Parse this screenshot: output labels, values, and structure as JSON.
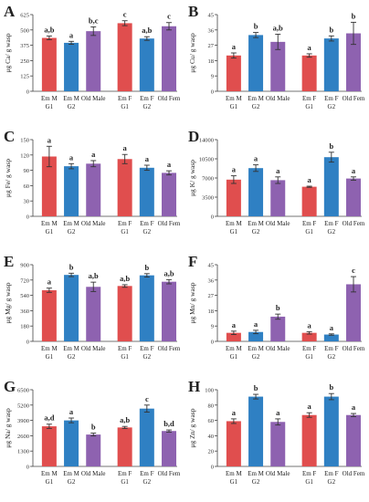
{
  "colors": {
    "red": "#e04e4e",
    "blue": "#2f80c3",
    "purple": "#8e62b0",
    "errorbar": "#333333"
  },
  "chart_data": [
    {
      "type": "bar",
      "panel": "A",
      "ylabel": "μg Ca/ g wasp",
      "ylim": [
        0,
        625
      ],
      "yticks": [
        "0",
        "125",
        "250",
        "375",
        "500",
        "625"
      ],
      "categories": [
        "Em M G1",
        "Em M G2",
        "Old Male",
        "Em F G1",
        "Em F G2",
        "Old Fem"
      ],
      "values": [
        435,
        395,
        490,
        555,
        430,
        530
      ],
      "errors": [
        15,
        12,
        35,
        20,
        15,
        30
      ],
      "labels": [
        "a,b",
        "a",
        "b,c",
        "c",
        "a,b",
        "c"
      ]
    },
    {
      "type": "bar",
      "panel": "B",
      "ylabel": "μg Cu/ g wasp",
      "ylim": [
        0,
        45
      ],
      "yticks": [
        "0",
        "9",
        "18",
        "27",
        "36",
        "45"
      ],
      "categories": [
        "Em M G1",
        "Em M G2",
        "Old Male",
        "Em F G1",
        "Em F G2",
        "Old Fem"
      ],
      "values": [
        21,
        33,
        29,
        21,
        31,
        34
      ],
      "errors": [
        1.5,
        1.5,
        4.5,
        1,
        1.5,
        6.5
      ],
      "labels": [
        "a",
        "b",
        "a,b",
        "a",
        "b",
        "b"
      ]
    },
    {
      "type": "bar",
      "panel": "C",
      "ylabel": "μg Fe/ g wasp",
      "ylim": [
        0,
        150
      ],
      "yticks": [
        "0",
        "30",
        "60",
        "90",
        "120",
        "150"
      ],
      "categories": [
        "Em M G1",
        "Em M G2",
        "Old Male",
        "Em F G1",
        "Em F G2",
        "Old Fem"
      ],
      "values": [
        117,
        98,
        103,
        112,
        95,
        85
      ],
      "errors": [
        20,
        5,
        6,
        9,
        5,
        4
      ],
      "labels": [
        "a",
        "a",
        "a",
        "a",
        "a",
        "a"
      ]
    },
    {
      "type": "bar",
      "panel": "D",
      "ylabel": "μg K/ g wasp",
      "ylim": [
        0,
        14000
      ],
      "yticks": [
        "0",
        "3500",
        "7000",
        "10500",
        "14000"
      ],
      "categories": [
        "Em M G1",
        "Em M G2",
        "Old Male",
        "Em F G1",
        "Em F G2",
        "Old Fem"
      ],
      "values": [
        6700,
        8800,
        6600,
        5400,
        10800,
        6900
      ],
      "errors": [
        700,
        600,
        600,
        100,
        900,
        300
      ],
      "labels": [
        "a",
        "a",
        "a",
        "a",
        "b",
        "a"
      ]
    },
    {
      "type": "bar",
      "panel": "E",
      "ylabel": "μg Mg/ g wasp",
      "ylim": [
        0,
        900
      ],
      "yticks": [
        "0",
        "180",
        "360",
        "540",
        "720",
        "900"
      ],
      "categories": [
        "Em M G1",
        "Em M G2",
        "Old Male",
        "Em F G1",
        "Em F G2",
        "Old Fem"
      ],
      "values": [
        600,
        780,
        640,
        650,
        775,
        700
      ],
      "errors": [
        25,
        20,
        55,
        15,
        20,
        25
      ],
      "labels": [
        "a",
        "b",
        "a,b",
        "a,b",
        "b",
        "a,b"
      ]
    },
    {
      "type": "bar",
      "panel": "F",
      "ylabel": "μg Mn/ g wasp",
      "ylim": [
        0,
        45
      ],
      "yticks": [
        "0",
        "9",
        "18",
        "27",
        "36",
        "45"
      ],
      "categories": [
        "Em M G1",
        "Em M G2",
        "Old Male",
        "Em F G1",
        "Em F G2",
        "Old Fem"
      ],
      "values": [
        5,
        5.5,
        14.5,
        5,
        4,
        33.5
      ],
      "errors": [
        1,
        1,
        1.5,
        0.7,
        0.4,
        4.5
      ],
      "labels": [
        "a",
        "a",
        "b",
        "a",
        "a",
        "c"
      ]
    },
    {
      "type": "bar",
      "panel": "G",
      "ylabel": "μg Na/ g wasp",
      "ylim": [
        0,
        6500
      ],
      "yticks": [
        "0",
        "1300",
        "2600",
        "3900",
        "5200",
        "6500"
      ],
      "categories": [
        "Em M G1",
        "Em M G2",
        "Old Male",
        "Em F G1",
        "Em F G2",
        "Old Fem"
      ],
      "values": [
        3400,
        3900,
        2700,
        3300,
        4900,
        3000
      ],
      "errors": [
        180,
        200,
        120,
        90,
        300,
        90
      ],
      "labels": [
        "a,d",
        "a",
        "b",
        "a,b",
        "c",
        "b,d"
      ]
    },
    {
      "type": "bar",
      "panel": "H",
      "ylabel": "μg Zn/ g wasp",
      "ylim": [
        0,
        100
      ],
      "yticks": [
        "0",
        "20",
        "40",
        "60",
        "80",
        "100"
      ],
      "categories": [
        "Em M G1",
        "Em M G2",
        "Old Male",
        "Em F G1",
        "Em F G2",
        "Old Fem"
      ],
      "values": [
        59,
        91,
        58,
        67,
        91,
        67
      ],
      "errors": [
        3,
        3,
        4,
        3,
        4,
        2
      ],
      "labels": [
        "a",
        "b",
        "a",
        "a",
        "b",
        "a"
      ]
    }
  ]
}
